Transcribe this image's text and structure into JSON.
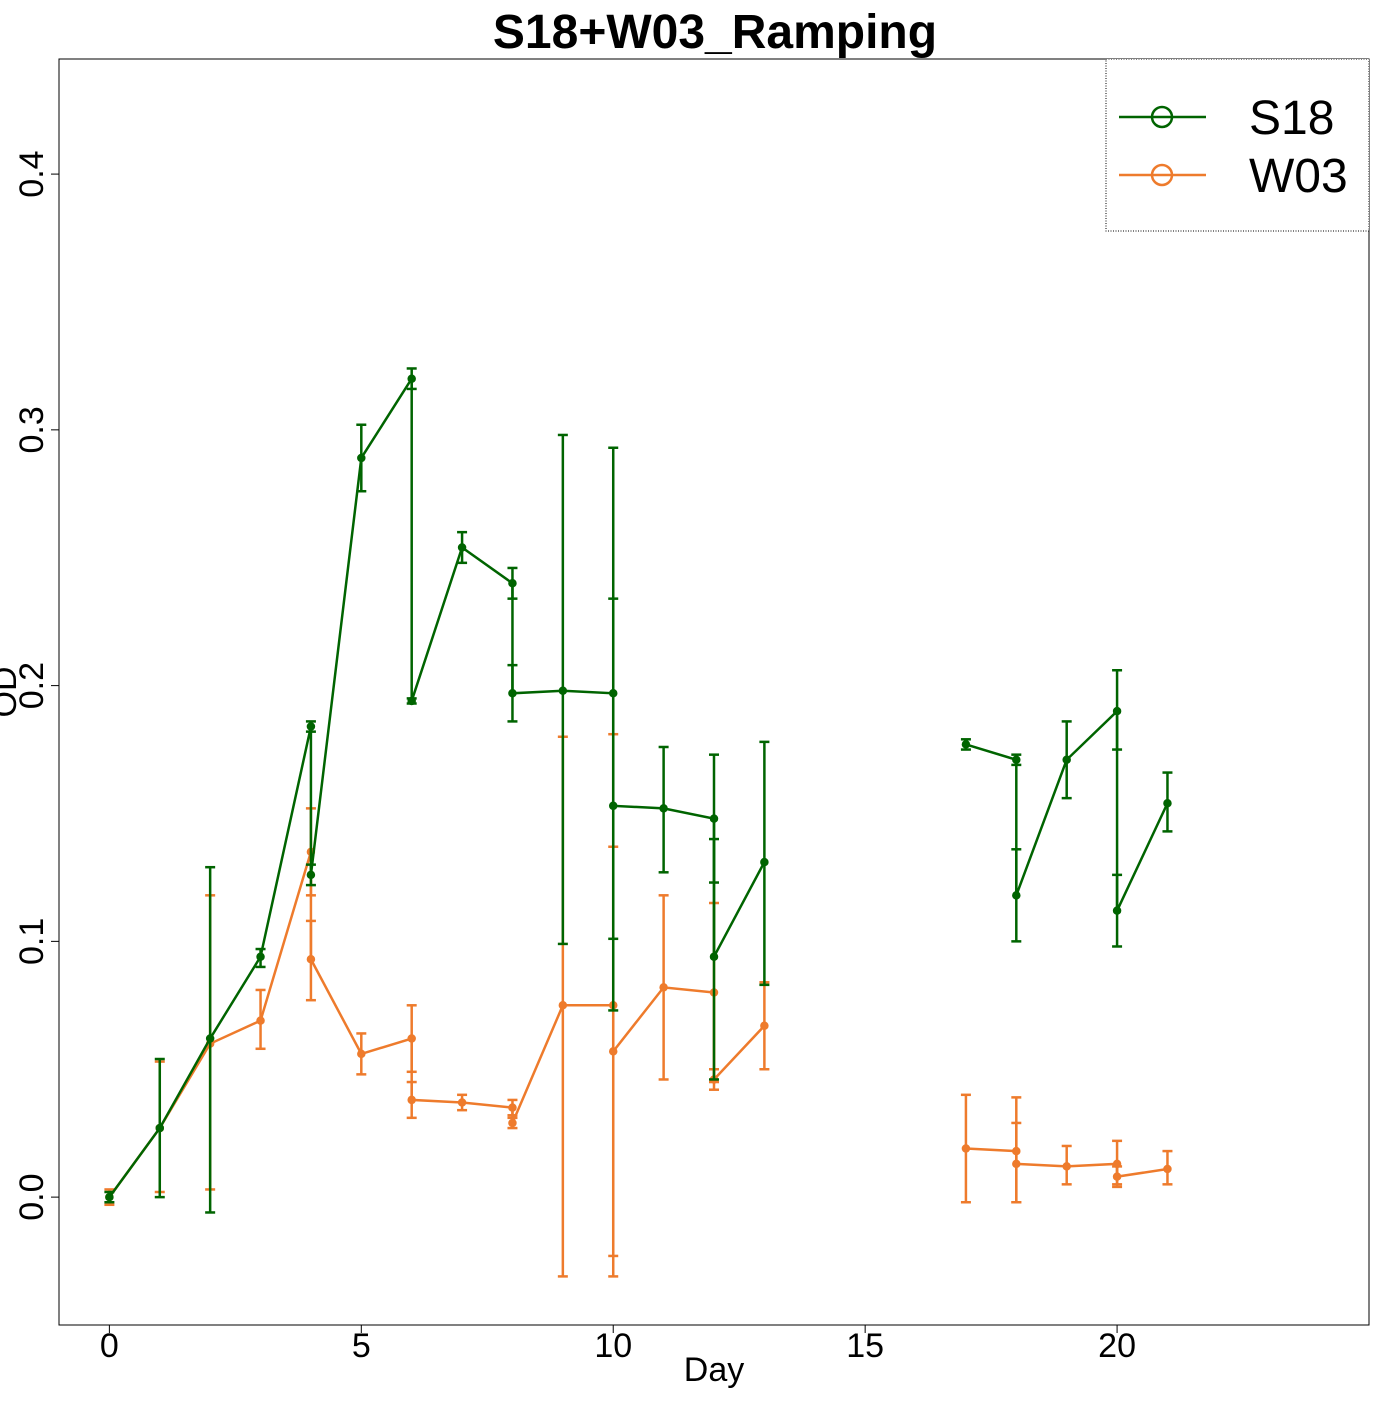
{
  "chart_data": {
    "type": "line",
    "title": "S18+W03_Ramping",
    "xlabel": "Day",
    "ylabel": "OD",
    "xlim": [
      -1,
      25
    ],
    "ylim": [
      -0.05,
      0.445
    ],
    "xticks": [
      "0",
      "5",
      "10",
      "15",
      "20"
    ],
    "yticks": [
      "0.0",
      "0.1",
      "0.2",
      "0.3",
      "0.4"
    ],
    "grid": false,
    "legend_position": "top-right",
    "series": [
      {
        "name": "S18",
        "color": "#006400",
        "segments": [
          {
            "x": [
              0,
              1,
              2,
              3,
              4,
              4,
              5,
              6,
              6,
              7,
              8,
              8,
              9,
              10,
              10,
              11,
              12,
              12,
              13
            ],
            "y": [
              0.0,
              0.027,
              0.062,
              0.094,
              0.184,
              0.126,
              0.289,
              0.32,
              0.194,
              0.254,
              0.24,
              0.197,
              0.198,
              0.197,
              0.153,
              0.152,
              0.148,
              0.094,
              0.131
            ],
            "err_low": [
              -0.002,
              0.0,
              -0.006,
              0.09,
              0.182,
              0.122,
              0.276,
              0.316,
              0.193,
              0.248,
              0.234,
              0.186,
              0.099,
              0.073,
              0.101,
              0.127,
              0.123,
              0.046,
              0.083
            ],
            "err_high": [
              0.002,
              0.054,
              0.129,
              0.097,
              0.186,
              0.13,
              0.302,
              0.324,
              0.195,
              0.26,
              0.246,
              0.208,
              0.298,
              0.293,
              0.234,
              0.176,
              0.173,
              0.14,
              0.178
            ]
          },
          {
            "x": [
              17,
              18,
              18,
              19,
              20,
              20,
              21
            ],
            "y": [
              0.177,
              0.171,
              0.118,
              0.171,
              0.19,
              0.112,
              0.154
            ],
            "err_low": [
              0.175,
              0.169,
              0.1,
              0.156,
              0.175,
              0.098,
              0.143
            ],
            "err_high": [
              0.179,
              0.173,
              0.136,
              0.186,
              0.206,
              0.126,
              0.166
            ]
          }
        ]
      },
      {
        "name": "W03",
        "color": "#ee7b2c",
        "segments": [
          {
            "x": [
              0,
              1,
              2,
              3,
              4,
              4,
              5,
              6,
              6,
              7,
              8,
              8,
              9,
              10,
              10,
              11,
              12,
              12,
              13
            ],
            "y": [
              0.0,
              0.027,
              0.06,
              0.069,
              0.135,
              0.093,
              0.056,
              0.062,
              0.038,
              0.037,
              0.035,
              0.029,
              0.075,
              0.075,
              0.057,
              0.082,
              0.08,
              0.046,
              0.067
            ],
            "err_low": [
              -0.003,
              0.002,
              0.003,
              0.058,
              0.118,
              0.077,
              0.048,
              0.049,
              0.031,
              0.034,
              0.032,
              0.027,
              -0.031,
              -0.031,
              -0.023,
              0.046,
              0.045,
              0.042,
              0.05
            ],
            "err_high": [
              0.003,
              0.053,
              0.118,
              0.081,
              0.152,
              0.108,
              0.064,
              0.075,
              0.045,
              0.04,
              0.038,
              0.031,
              0.18,
              0.181,
              0.137,
              0.118,
              0.115,
              0.05,
              0.084
            ]
          },
          {
            "x": [
              17,
              18,
              18,
              19,
              20,
              20,
              21
            ],
            "y": [
              0.019,
              0.018,
              0.013,
              0.012,
              0.013,
              0.008,
              0.011
            ],
            "err_low": [
              -0.002,
              -0.002,
              -0.002,
              0.005,
              0.005,
              0.004,
              0.005
            ],
            "err_high": [
              0.04,
              0.039,
              0.029,
              0.02,
              0.022,
              0.012,
              0.018
            ]
          }
        ]
      }
    ]
  }
}
